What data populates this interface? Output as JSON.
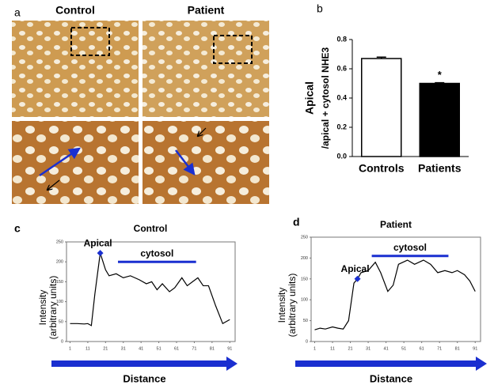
{
  "panel_a": {
    "label": "a",
    "titles": [
      "Control",
      "Patient"
    ]
  },
  "chart_data": [
    {
      "type": "bar",
      "label": "b",
      "ylabel": [
        "Apical",
        "/apical + cytosol NHE3"
      ],
      "categories": [
        "Controls",
        "Patients"
      ],
      "values": [
        0.67,
        0.5
      ],
      "errors": [
        0.01,
        0.005
      ],
      "colors": [
        "#ffffff",
        "#000000"
      ],
      "annotations": [
        {
          "text": "*",
          "category": 1
        }
      ],
      "ylim": [
        0,
        0.8
      ],
      "yticks": [
        {
          "value": 0,
          "label": "0.0"
        },
        0.2,
        0.4,
        0.6,
        0.8
      ]
    },
    {
      "type": "line",
      "label": "c",
      "title": "Control",
      "ylabel": [
        "Intensity",
        "(arbitrary units)"
      ],
      "xlabel": "Distance",
      "x": [
        1,
        5,
        9,
        11,
        13,
        15,
        18,
        21,
        23,
        27,
        31,
        35,
        40,
        44,
        47,
        50,
        53,
        57,
        60,
        64,
        67,
        70,
        73,
        76,
        79,
        83,
        87,
        91
      ],
      "series": [
        {
          "color": "#000000",
          "values": [
            45,
            45,
            44,
            45,
            40,
            120,
            222,
            180,
            165,
            170,
            160,
            165,
            155,
            145,
            150,
            130,
            145,
            125,
            135,
            160,
            140,
            150,
            160,
            140,
            140,
            90,
            45,
            55
          ]
        }
      ],
      "marker": {
        "text": "Apical",
        "x": 18,
        "y": 222
      },
      "bracket": {
        "text": "cytosol",
        "x": [
          28,
          72
        ],
        "y": 200
      },
      "xlim": [
        -1,
        94
      ],
      "xticks": [
        1,
        11,
        21,
        31,
        41,
        51,
        61,
        71,
        81,
        91
      ],
      "ylim": [
        0,
        250
      ],
      "yticks": [
        0,
        50,
        100,
        150,
        200,
        250
      ]
    },
    {
      "type": "line",
      "label": "d",
      "title": "Patient",
      "ylabel": [
        "Intensity",
        "(arbitrary units)"
      ],
      "xlabel": "Distance",
      "x": [
        1,
        4,
        7,
        11,
        14,
        17,
        20,
        23,
        25,
        27,
        31,
        35,
        38,
        42,
        45,
        48,
        53,
        57,
        62,
        66,
        70,
        74,
        78,
        81,
        85,
        88,
        91
      ],
      "series": [
        {
          "color": "#000000",
          "values": [
            28,
            32,
            30,
            35,
            32,
            30,
            50,
            140,
            150,
            165,
            170,
            190,
            165,
            120,
            135,
            185,
            195,
            185,
            195,
            185,
            165,
            170,
            165,
            170,
            160,
            145,
            120
          ]
        }
      ],
      "marker": {
        "text": "Apical",
        "x": 25,
        "y": 150
      },
      "bracket": {
        "text": "cytosol",
        "x": [
          33,
          76
        ],
        "y": 205
      },
      "xlim": [
        -1,
        94
      ],
      "xticks": [
        1,
        11,
        21,
        31,
        41,
        51,
        61,
        71,
        81,
        91
      ],
      "ylim": [
        0,
        250
      ],
      "yticks": [
        0,
        50,
        100,
        150,
        200,
        250
      ]
    }
  ]
}
